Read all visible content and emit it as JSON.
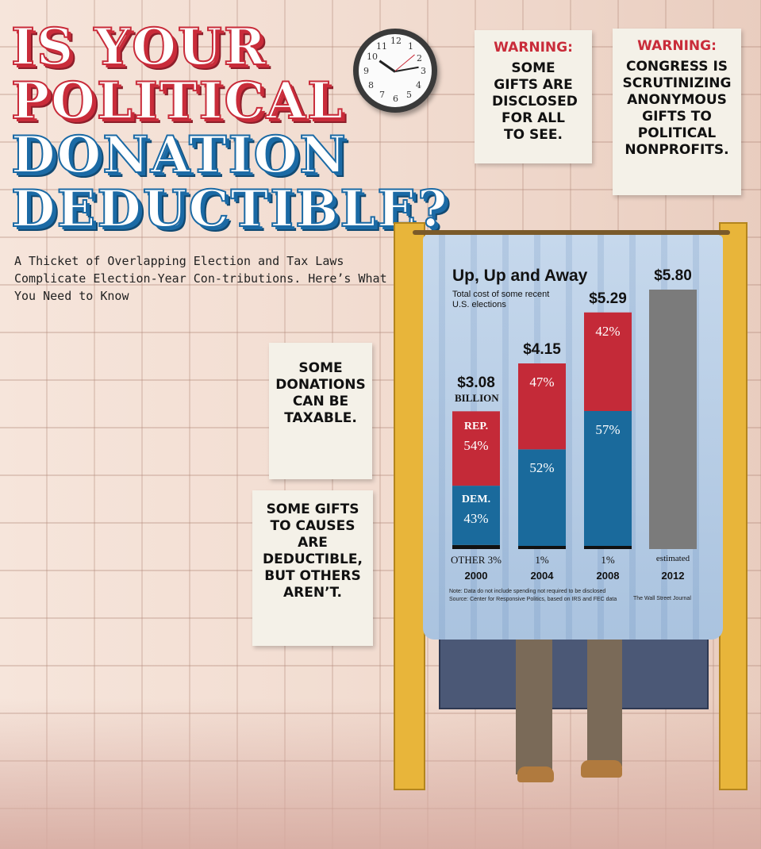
{
  "headline": {
    "line1": "IS YOUR",
    "line2": "POLITICAL",
    "line3": "DONATION",
    "line4": "DEDUCTIBLE?"
  },
  "subhead": "A Thicket of Overlapping Election and Tax Laws Complicate Election-Year Con-tributions. Here’s What You Need to Know",
  "clock": {
    "numbers": [
      "12",
      "1",
      "2",
      "3",
      "4",
      "5",
      "6",
      "7",
      "8",
      "9",
      "10",
      "11"
    ]
  },
  "notes": {
    "warning1": {
      "label": "WARNING:",
      "body": "SOME GIFTS ARE DISCLOSED FOR ALL TO SEE."
    },
    "warning2": {
      "label": "WARNING:",
      "body": "CONGRESS IS SCRUTINIZING ANONYMOUS GIFTS TO POLITICAL NONPROFITS."
    },
    "taxable": {
      "body": "SOME DONATIONS CAN BE TAXABLE."
    },
    "causes": {
      "body": "SOME GIFTS TO CAUSES ARE DEDUCTIBLE, BUT OTHERS AREN’T."
    }
  },
  "chart_data": {
    "type": "bar",
    "title": "Up, Up and Away",
    "subtitle": "Total cost of some recent U.S. elections",
    "categories": [
      "2000",
      "2004",
      "2008",
      "2012"
    ],
    "totals": [
      3.08,
      4.15,
      5.29,
      5.8
    ],
    "total_labels": [
      "$3.08",
      "$4.15",
      "$5.29",
      "$5.80"
    ],
    "unit_label": "BILLION",
    "series": [
      {
        "name": "DEM.",
        "values": [
          43,
          52,
          57,
          null
        ],
        "color": "#1a6a9c"
      },
      {
        "name": "REP.",
        "values": [
          54,
          47,
          42,
          null
        ],
        "color": "#c42a38"
      },
      {
        "name": "OTHER",
        "values": [
          3,
          1,
          1,
          null
        ],
        "color": "#111111"
      }
    ],
    "segment_labels": {
      "dem": [
        "43%",
        "52%",
        "57%",
        ""
      ],
      "rep": [
        "54%",
        "47%",
        "42%",
        ""
      ],
      "other": [
        "3%",
        "1%",
        "1%",
        ""
      ]
    },
    "estimated_label": "estimated",
    "estimated_color": "#7b7b7b",
    "stack_unit": "percent",
    "ylim": [
      0,
      5.8
    ],
    "note": "Note: Data do not include spending not required to be disclosed",
    "source": "Source: Center for Responsive Politics, based on IRS and FEC data",
    "credit": "The Wall Street Journal"
  }
}
